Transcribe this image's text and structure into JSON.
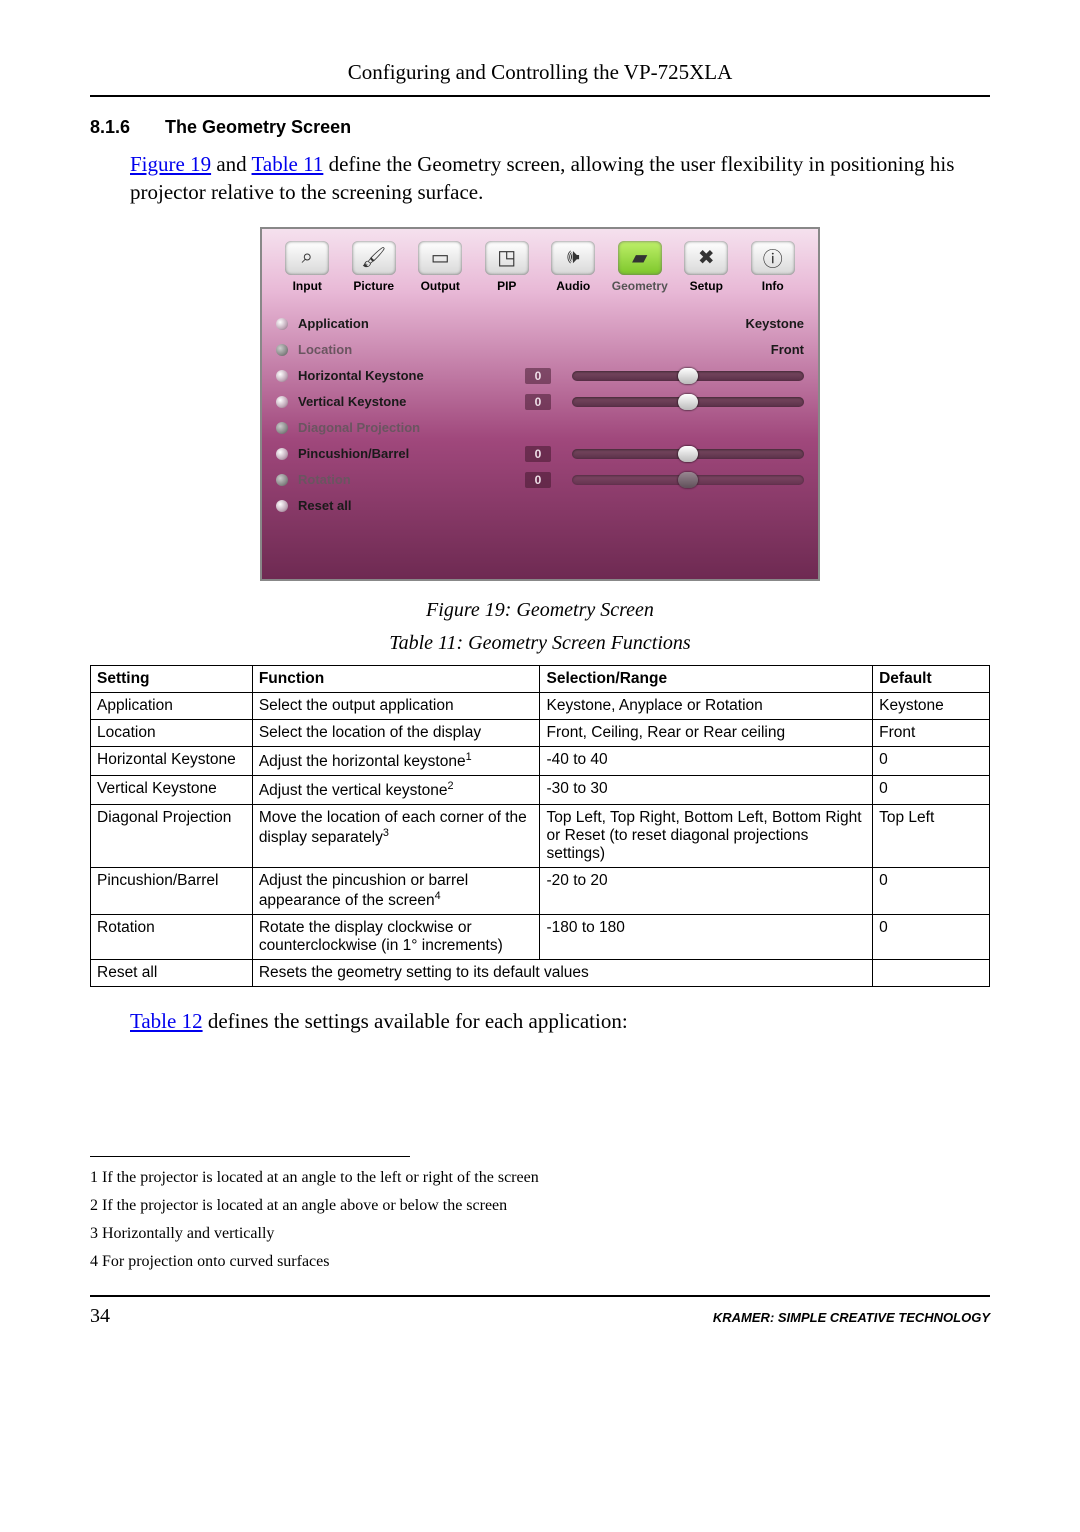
{
  "page": {
    "running_header": "Configuring and Controlling the VP-725XLA",
    "number": "34",
    "brand_footer": "KRAMER:  SIMPLE CREATIVE TECHNOLOGY"
  },
  "section": {
    "number": "8.1.6",
    "title": "The Geometry Screen"
  },
  "intro": {
    "link_fig": "Figure 19",
    "mid1": " and ",
    "link_tbl": "Table 11",
    "rest": " define the Geometry screen, allowing the user flexibility in positioning his projector relative to the screening surface."
  },
  "osd": {
    "tabs": [
      {
        "label": "Input",
        "glyph": "⌕",
        "selected": false
      },
      {
        "label": "Picture",
        "glyph": "🖌",
        "selected": false
      },
      {
        "label": "Output",
        "glyph": "▭",
        "selected": false
      },
      {
        "label": "PIP",
        "glyph": "◳",
        "selected": false
      },
      {
        "label": "Audio",
        "glyph": "🕪",
        "selected": false
      },
      {
        "label": "Geometry",
        "glyph": "▰",
        "selected": true
      },
      {
        "label": "Setup",
        "glyph": "✖",
        "selected": false
      },
      {
        "label": "Info",
        "glyph": "ⓘ",
        "selected": false
      }
    ],
    "selected_index": 5,
    "rows": [
      {
        "label": "Application",
        "right_text": "Keystone"
      },
      {
        "label": "Location",
        "right_text": "Front",
        "dim": true
      },
      {
        "label": "Horizontal Keystone",
        "value": "0",
        "slider_pct": 50
      },
      {
        "label": "Vertical Keystone",
        "value": "0",
        "slider_pct": 50
      },
      {
        "label": "Diagonal Projection",
        "dim": true
      },
      {
        "label": "Pincushion/Barrel",
        "value": "0",
        "slider_pct": 50
      },
      {
        "label": "Rotation",
        "value": "0",
        "slider_pct": 50,
        "dim": true,
        "slider_disabled": true
      },
      {
        "label": "Reset all"
      }
    ]
  },
  "captions": {
    "figure": "Figure 19: Geometry Screen",
    "table": "Table 11: Geometry Screen Functions"
  },
  "table": {
    "headers": [
      "Setting",
      "Function",
      "Selection/Range",
      "Default"
    ],
    "rows": [
      {
        "s": "Application",
        "f": "Select the output application",
        "r": "Keystone, Anyplace or Rotation",
        "d": "Keystone"
      },
      {
        "s": "Location",
        "f": "Select the location of the display",
        "r": "Front, Ceiling, Rear or Rear ceiling",
        "d": "Front"
      },
      {
        "s": "Horizontal Keystone",
        "f": "Adjust the horizontal keystone",
        "fn": "1",
        "r": "-40 to 40",
        "d": "0"
      },
      {
        "s": "Vertical Keystone",
        "f": "Adjust the vertical keystone",
        "fn": "2",
        "r": "-30 to 30",
        "d": "0"
      },
      {
        "s": "Diagonal Projection",
        "f": "Move the location of each corner of the display separately",
        "fn": "3",
        "r": "Top Left, Top Right, Bottom Left, Bottom Right or Reset (to reset diagonal projections settings)",
        "d": "Top Left"
      },
      {
        "s": "Pincushion/Barrel",
        "f": "Adjust the pincushion or barrel appearance of the screen",
        "fn": "4",
        "r": "-20 to 20",
        "d": "0"
      },
      {
        "s": "Rotation",
        "f": "Rotate the display clockwise or counterclockwise (in 1° increments)",
        "r": "-180 to 180",
        "d": "0"
      },
      {
        "s": "Reset all",
        "f_span": "Resets the geometry setting to its default values",
        "d": ""
      }
    ]
  },
  "after_table": {
    "link": "Table 12",
    "rest": " defines the settings available for each application:"
  },
  "footnotes": [
    "1 If the projector is located at an angle to the left or right of the screen",
    "2 If the projector is located at an angle above or below the screen",
    "3 Horizontally and vertically",
    "4 For projection onto curved surfaces"
  ]
}
